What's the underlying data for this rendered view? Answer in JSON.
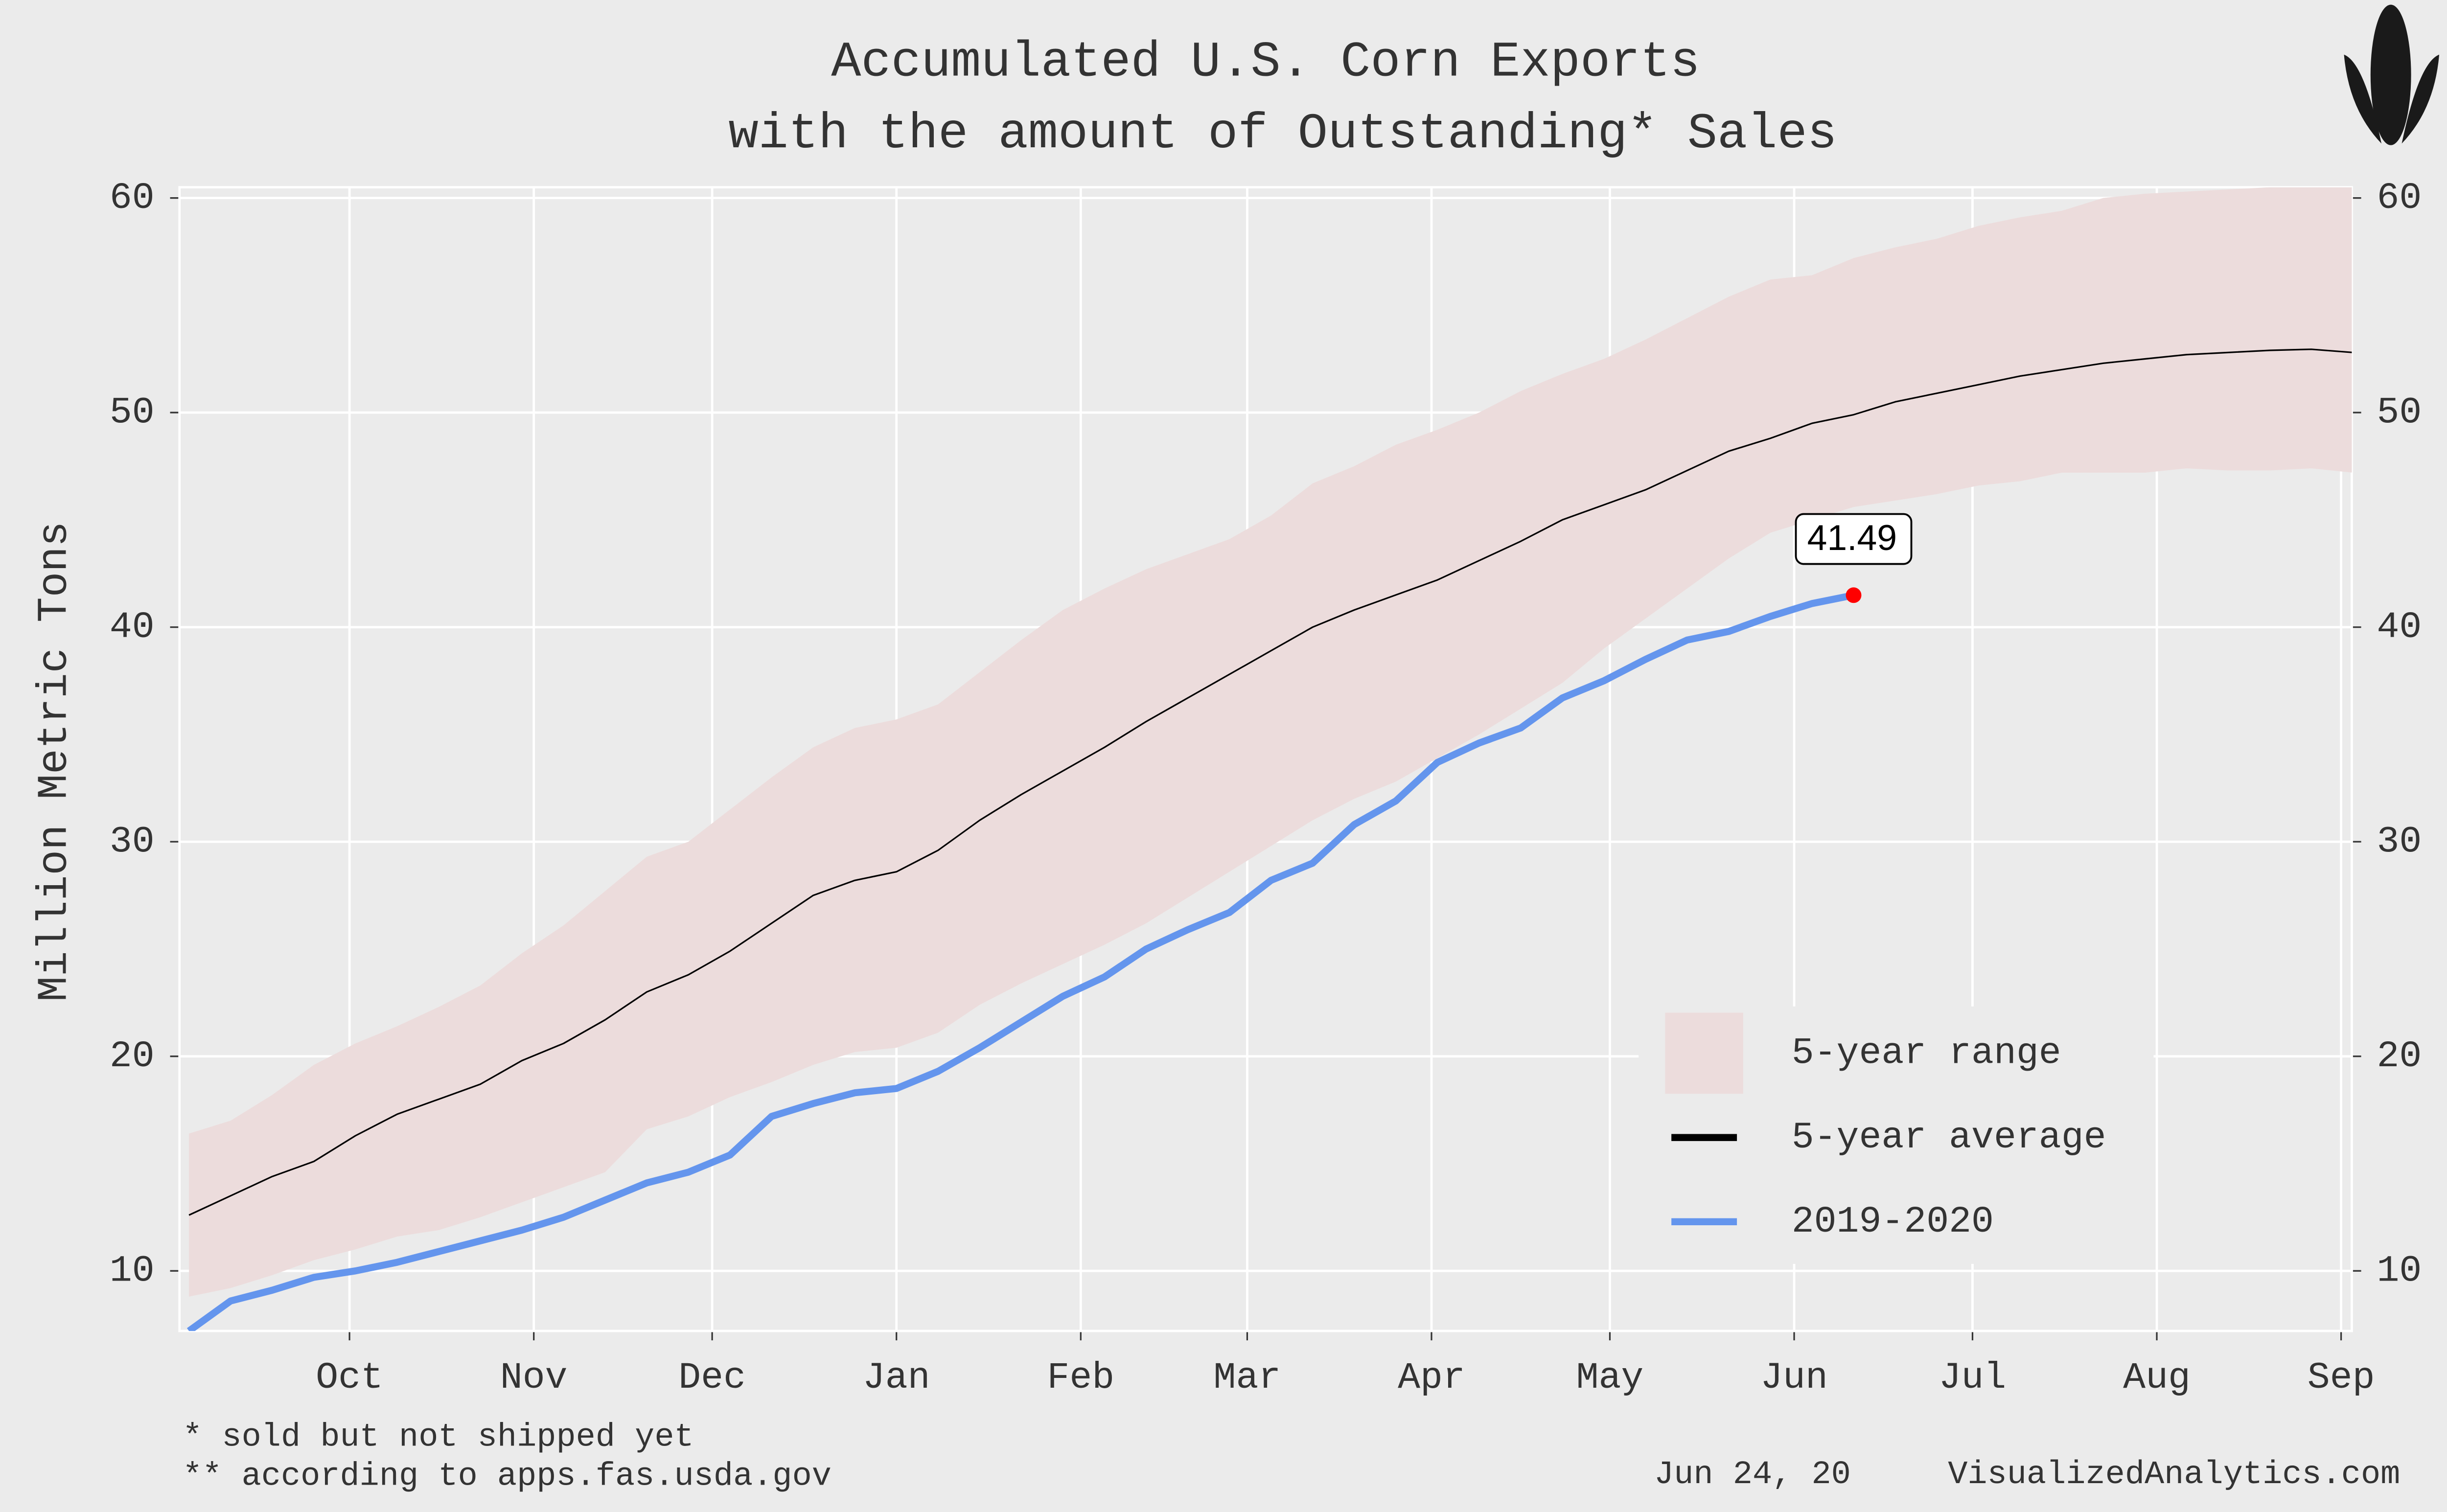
{
  "chart_data": {
    "type": "line",
    "title": [
      "Accumulated U.S. Corn Exports",
      "with the amount of Outstanding* Sales"
    ],
    "y_label": "Million Metric Tons",
    "footnotes": [
      "* sold but not shipped yet",
      "** according to apps.fas.usda.gov"
    ],
    "date": "Jun 24, 20",
    "source": "VisualizedAnalytics.com",
    "x": [
      3,
      10,
      17,
      24,
      31,
      38,
      45,
      52,
      59,
      66,
      73,
      80,
      87,
      94,
      101,
      108,
      115,
      122,
      129,
      136,
      143,
      150,
      157,
      164,
      171,
      178,
      185,
      192,
      199,
      206,
      213,
      220,
      227,
      234,
      241,
      248,
      255,
      262,
      269,
      276,
      283,
      290,
      297,
      304,
      311,
      318,
      325,
      332,
      339,
      346,
      353,
      360,
      367
    ],
    "xlim": [
      1.4,
      366.8
    ],
    "xticks": [
      {
        "value": 30,
        "label": "Oct"
      },
      {
        "value": 61,
        "label": "Nov"
      },
      {
        "value": 91,
        "label": "Dec"
      },
      {
        "value": 122,
        "label": "Jan"
      },
      {
        "value": 153,
        "label": "Feb"
      },
      {
        "value": 181,
        "label": "Mar"
      },
      {
        "value": 212,
        "label": "Apr"
      },
      {
        "value": 242,
        "label": "May"
      },
      {
        "value": 273,
        "label": "Jun"
      },
      {
        "value": 303,
        "label": "Jul"
      },
      {
        "value": 334,
        "label": "Aug"
      },
      {
        "value": 365,
        "label": "Sep"
      }
    ],
    "ylim": [
      7.2,
      60.5
    ],
    "yticks": [
      10,
      20,
      30,
      40,
      50,
      60
    ],
    "secondary_axis_ticks": true,
    "grid": true,
    "legend": "lower right",
    "series": [
      {
        "name": "5-year range",
        "color": "#ecdcdc",
        "upper": [
          16.4,
          17.0,
          18.2,
          19.6,
          20.6,
          21.4,
          22.3,
          23.3,
          24.8,
          26.1,
          27.7,
          29.3,
          30.0,
          31.5,
          33.0,
          34.4,
          35.3,
          35.7,
          36.4,
          37.9,
          39.4,
          40.8,
          41.8,
          42.7,
          43.4,
          44.1,
          45.2,
          46.7,
          47.5,
          48.5,
          49.2,
          50.0,
          51.0,
          51.8,
          52.5,
          53.4,
          54.4,
          55.4,
          56.2,
          56.4,
          57.2,
          57.7,
          58.1,
          58.7,
          59.1,
          59.4,
          60.0,
          60.2,
          60.3,
          60.4,
          60.5,
          60.5,
          60.5
        ],
        "lower": [
          8.8,
          9.2,
          9.8,
          10.5,
          11.0,
          11.6,
          11.9,
          12.5,
          13.2,
          13.9,
          14.6,
          16.6,
          17.2,
          18.1,
          18.8,
          19.6,
          20.2,
          20.4,
          21.1,
          22.4,
          23.4,
          24.3,
          25.2,
          26.2,
          27.4,
          28.6,
          29.8,
          31.0,
          32.0,
          32.8,
          33.9,
          35.0,
          36.2,
          37.4,
          39.0,
          40.4,
          41.8,
          43.2,
          44.4,
          45.0,
          45.6,
          45.9,
          46.2,
          46.6,
          46.8,
          47.2,
          47.2,
          47.2,
          47.4,
          47.3,
          47.3,
          47.4,
          47.2
        ]
      },
      {
        "name": "5-year average",
        "color": "#000000",
        "values": [
          12.6,
          13.5,
          14.4,
          15.1,
          16.3,
          17.3,
          18.0,
          18.7,
          19.8,
          20.6,
          21.7,
          23.0,
          23.8,
          24.9,
          26.2,
          27.5,
          28.2,
          28.6,
          29.6,
          31.0,
          32.2,
          33.3,
          34.4,
          35.6,
          36.7,
          37.8,
          38.9,
          40.0,
          40.8,
          41.5,
          42.2,
          43.1,
          44.0,
          45.0,
          45.7,
          46.4,
          47.3,
          48.2,
          48.8,
          49.5,
          49.9,
          50.5,
          50.9,
          51.3,
          51.7,
          52.0,
          52.3,
          52.5,
          52.7,
          52.8,
          52.9,
          52.95,
          52.8
        ]
      },
      {
        "name": "2019-2020",
        "color": "#6495ed",
        "values": [
          7.2,
          8.6,
          9.1,
          9.7,
          10.0,
          10.4,
          10.9,
          11.4,
          11.9,
          12.5,
          13.3,
          14.1,
          14.6,
          15.4,
          17.2,
          17.8,
          18.3,
          18.5,
          19.3,
          20.4,
          21.6,
          22.8,
          23.7,
          25.0,
          25.9,
          26.7,
          28.2,
          29.0,
          30.8,
          31.9,
          33.7,
          34.6,
          35.3,
          36.7,
          37.5,
          38.5,
          39.4,
          39.8,
          40.5,
          41.1,
          41.49,
          null,
          null,
          null,
          null,
          null,
          null,
          null,
          null,
          null,
          null,
          null,
          null
        ]
      }
    ]
  }
}
